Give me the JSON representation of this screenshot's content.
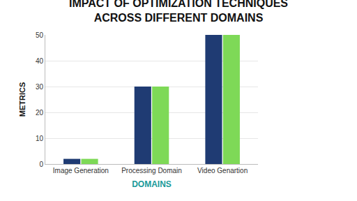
{
  "chart_data": {
    "type": "bar",
    "title": "IMPACT OF OPTIMIZATION TECHNIQUES\nACROSS DIFFERENT DOMAINS",
    "x_label": "DOMAINS",
    "y_label": "METRICS",
    "categories": [
      "Image Generation",
      "Processing Domain",
      "Video Genartion"
    ],
    "series": [
      {
        "color": "#1f3b73",
        "values": [
          2,
          30,
          50
        ]
      },
      {
        "color": "#7ed957",
        "values": [
          2,
          30,
          50
        ]
      }
    ],
    "ylim": [
      0,
      50
    ],
    "yticks": [
      0,
      10,
      20,
      30,
      40,
      50
    ],
    "grid": true
  }
}
